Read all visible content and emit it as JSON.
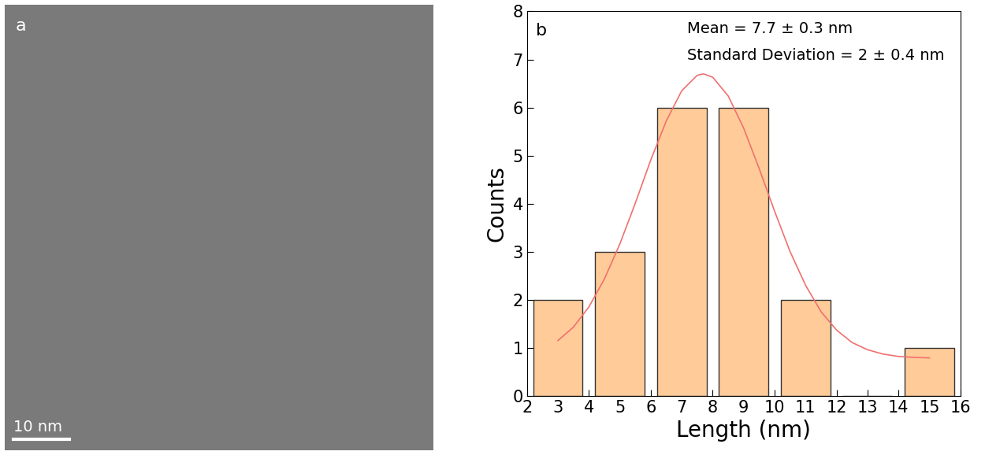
{
  "chart_data": {
    "type": "histogram",
    "panel_label": "b",
    "annotations": [
      "Mean = 7.7 ± 0.3 nm",
      "Standard Deviation = 2 ± 0.4 nm"
    ],
    "x_label": "Length (nm)",
    "y_label": "Counts",
    "bins": [
      2,
      4,
      6,
      8,
      10,
      12,
      14,
      16
    ],
    "counts": [
      2,
      3,
      6,
      6,
      2,
      0,
      1
    ],
    "color": "#ffcc99",
    "fit_line": {
      "type": "line",
      "color": "#f07070",
      "x": [
        3,
        3.5,
        4,
        4.5,
        5,
        5.5,
        6,
        6.5,
        7,
        7.5,
        7.7,
        8,
        8.5,
        9,
        9.5,
        10,
        10.5,
        11,
        11.5,
        12,
        12.5,
        13,
        13.5,
        14,
        14.5,
        15
      ],
      "values": [
        1.15,
        1.43,
        1.85,
        2.43,
        3.16,
        4.01,
        4.91,
        5.72,
        6.35,
        6.67,
        6.7,
        6.63,
        6.24,
        5.57,
        4.73,
        3.84,
        3.0,
        2.3,
        1.75,
        1.37,
        1.11,
        0.96,
        0.87,
        0.82,
        0.8,
        0.79
      ]
    },
    "xlim": [
      2,
      16
    ],
    "xticks": [
      2,
      3,
      4,
      5,
      6,
      7,
      8,
      9,
      10,
      11,
      12,
      13,
      14,
      15,
      16
    ],
    "ylim": [
      0,
      8
    ],
    "yticks": [
      0,
      1,
      2,
      3,
      4,
      5,
      6,
      7,
      8
    ],
    "grid": false
  },
  "image_panel": {
    "label": "a",
    "scale_bar": "10 nm"
  }
}
